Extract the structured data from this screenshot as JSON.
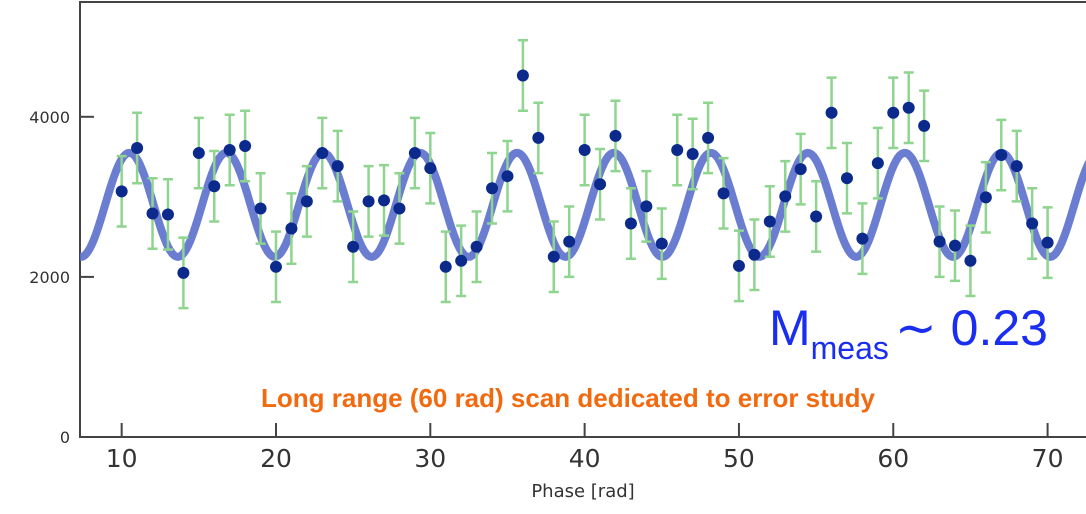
{
  "chart_data": {
    "type": "scatter",
    "x_label": "Phase [rad]",
    "xlim": [
      7.3,
      72.1
    ],
    "xticks": [
      10,
      20,
      30,
      40,
      50,
      60,
      70
    ],
    "ylim": [
      0,
      5434
    ],
    "yticks": [
      0,
      2000,
      4000
    ],
    "series": [
      {
        "color": "#0b2a8c",
        "error_color": "#8fd48f",
        "x": [
          10,
          11,
          12,
          13,
          14,
          15,
          16,
          17,
          18,
          19,
          20,
          21,
          22,
          23,
          24,
          25,
          26,
          27,
          28,
          29,
          30,
          31,
          32,
          33,
          34,
          35,
          36,
          37,
          38,
          39,
          40,
          41,
          42,
          43,
          44,
          45,
          46,
          47,
          48,
          49,
          50,
          51,
          52,
          53,
          54,
          55,
          56,
          57,
          58,
          59,
          60,
          61,
          62,
          63,
          64,
          65,
          66,
          67,
          68,
          69,
          70
        ],
        "values": [
          3069,
          3610,
          2792,
          2780,
          2050,
          3547,
          3132,
          3585,
          3635,
          2855,
          2126,
          2604,
          2943,
          3547,
          3384,
          2377,
          2943,
          2956,
          2855,
          3547,
          3358,
          2126,
          2201,
          2377,
          3107,
          3258,
          4516,
          3736,
          2252,
          2440,
          3585,
          3157,
          3761,
          2667,
          2881,
          2415,
          3585,
          3535,
          3736,
          3044,
          2138,
          2277,
          2692,
          3006,
          3346,
          2755,
          4050,
          3233,
          2478,
          3421,
          4050,
          4113,
          3887,
          2440,
          2390,
          2201,
          2994,
          3522,
          3384,
          2667,
          2428
        ],
        "errors": [
          440,
          440,
          440,
          440,
          440,
          440,
          440,
          440,
          440,
          440,
          440,
          440,
          440,
          440,
          440,
          440,
          440,
          440,
          440,
          440,
          440,
          440,
          440,
          440,
          440,
          440,
          440,
          440,
          440,
          440,
          440,
          440,
          440,
          440,
          440,
          440,
          440,
          440,
          440,
          440,
          440,
          440,
          440,
          440,
          440,
          440,
          440,
          440,
          440,
          440,
          440,
          440,
          440,
          440,
          440,
          440,
          440,
          440,
          440,
          440,
          440
        ]
      }
    ],
    "fit": {
      "color": "#5b6fcb",
      "offset": 2900,
      "amplitude": 650,
      "period": 6.28,
      "peak": 10.5
    },
    "annotations": [
      {
        "text": "M",
        "subscript": "meas",
        "suffix": "∼ 0.23",
        "color": "#1a2ef0"
      },
      {
        "text": "Long range (60 rad) scan dedicated to error study",
        "color": "#f26a10"
      }
    ]
  }
}
